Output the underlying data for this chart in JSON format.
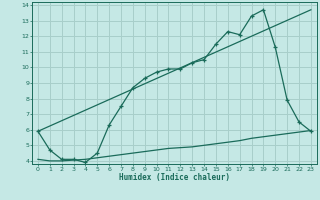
{
  "xlabel": "Humidex (Indice chaleur)",
  "xlim": [
    -0.5,
    23.5
  ],
  "ylim": [
    3.8,
    14.2
  ],
  "yticks": [
    4,
    5,
    6,
    7,
    8,
    9,
    10,
    11,
    12,
    13,
    14
  ],
  "xticks": [
    0,
    1,
    2,
    3,
    4,
    5,
    6,
    7,
    8,
    9,
    10,
    11,
    12,
    13,
    14,
    15,
    16,
    17,
    18,
    19,
    20,
    21,
    22,
    23
  ],
  "bg_color": "#c5e8e5",
  "grid_color": "#a8ceca",
  "line_color": "#1a6b5a",
  "line1_x": [
    0,
    1,
    2,
    3,
    4,
    5,
    6,
    7,
    8,
    9,
    10,
    11,
    12,
    13,
    14,
    15,
    16,
    17,
    18,
    19,
    20,
    21,
    22,
    23
  ],
  "line1_y": [
    5.9,
    4.7,
    4.1,
    4.1,
    3.9,
    4.5,
    6.3,
    7.5,
    8.7,
    9.3,
    9.7,
    9.9,
    9.9,
    10.3,
    10.5,
    11.5,
    12.3,
    12.1,
    13.3,
    13.7,
    11.3,
    7.9,
    6.5,
    5.9
  ],
  "line2_x": [
    0,
    23
  ],
  "line2_y": [
    5.9,
    13.7
  ],
  "line3_x": [
    0,
    1,
    2,
    3,
    4,
    5,
    6,
    7,
    8,
    9,
    10,
    11,
    12,
    13,
    14,
    15,
    16,
    17,
    18,
    19,
    20,
    21,
    22,
    23
  ],
  "line3_y": [
    4.1,
    4.0,
    4.0,
    4.05,
    4.1,
    4.2,
    4.3,
    4.4,
    4.5,
    4.6,
    4.7,
    4.8,
    4.85,
    4.9,
    5.0,
    5.1,
    5.2,
    5.3,
    5.45,
    5.55,
    5.65,
    5.75,
    5.85,
    5.95
  ]
}
